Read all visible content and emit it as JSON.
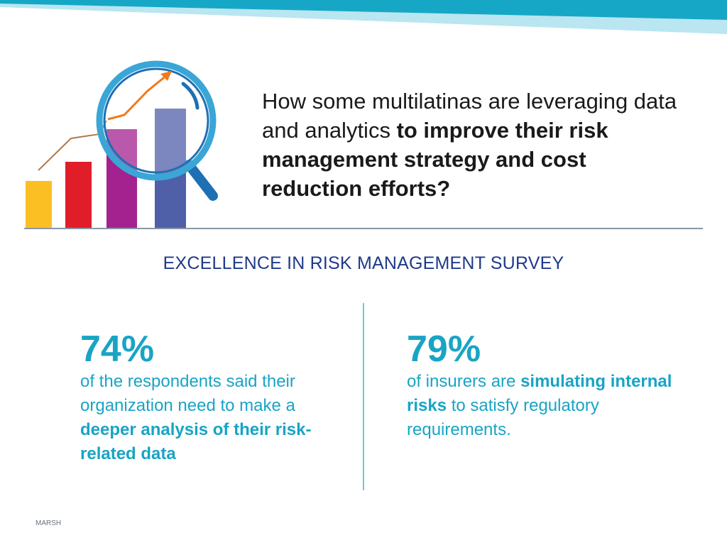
{
  "headline": {
    "plain": "How some multilatinas are leveraging data and analytics ",
    "bold": "to improve their risk management strategy and cost reduction efforts?"
  },
  "survey_title": "EXCELLENCE IN RISK MANAGEMENT SURVEY",
  "stats": {
    "left": {
      "number": "74%",
      "text_plain": "of the respondents said their organization need to make a ",
      "text_bold": "deeper analysis of their risk-related data"
    },
    "right": {
      "number": "79%",
      "text_plain_1": "of insurers are ",
      "text_bold": "simulating internal risks",
      "text_plain_2": " to satisfy regulatory requirements."
    }
  },
  "footer": {
    "brand": "MARSH"
  },
  "colors": {
    "accent": "#19a4c5",
    "title_blue": "#1f3a8a",
    "bar_yellow": "#fbbf24",
    "bar_red": "#e11d2a",
    "bar_purple": "#a3228f",
    "bar_blue": "#4f5fa8",
    "arrow_orange": "#f27a1a"
  },
  "icons": {
    "illustration": "growth-bar-chart-with-magnifier-icon"
  }
}
